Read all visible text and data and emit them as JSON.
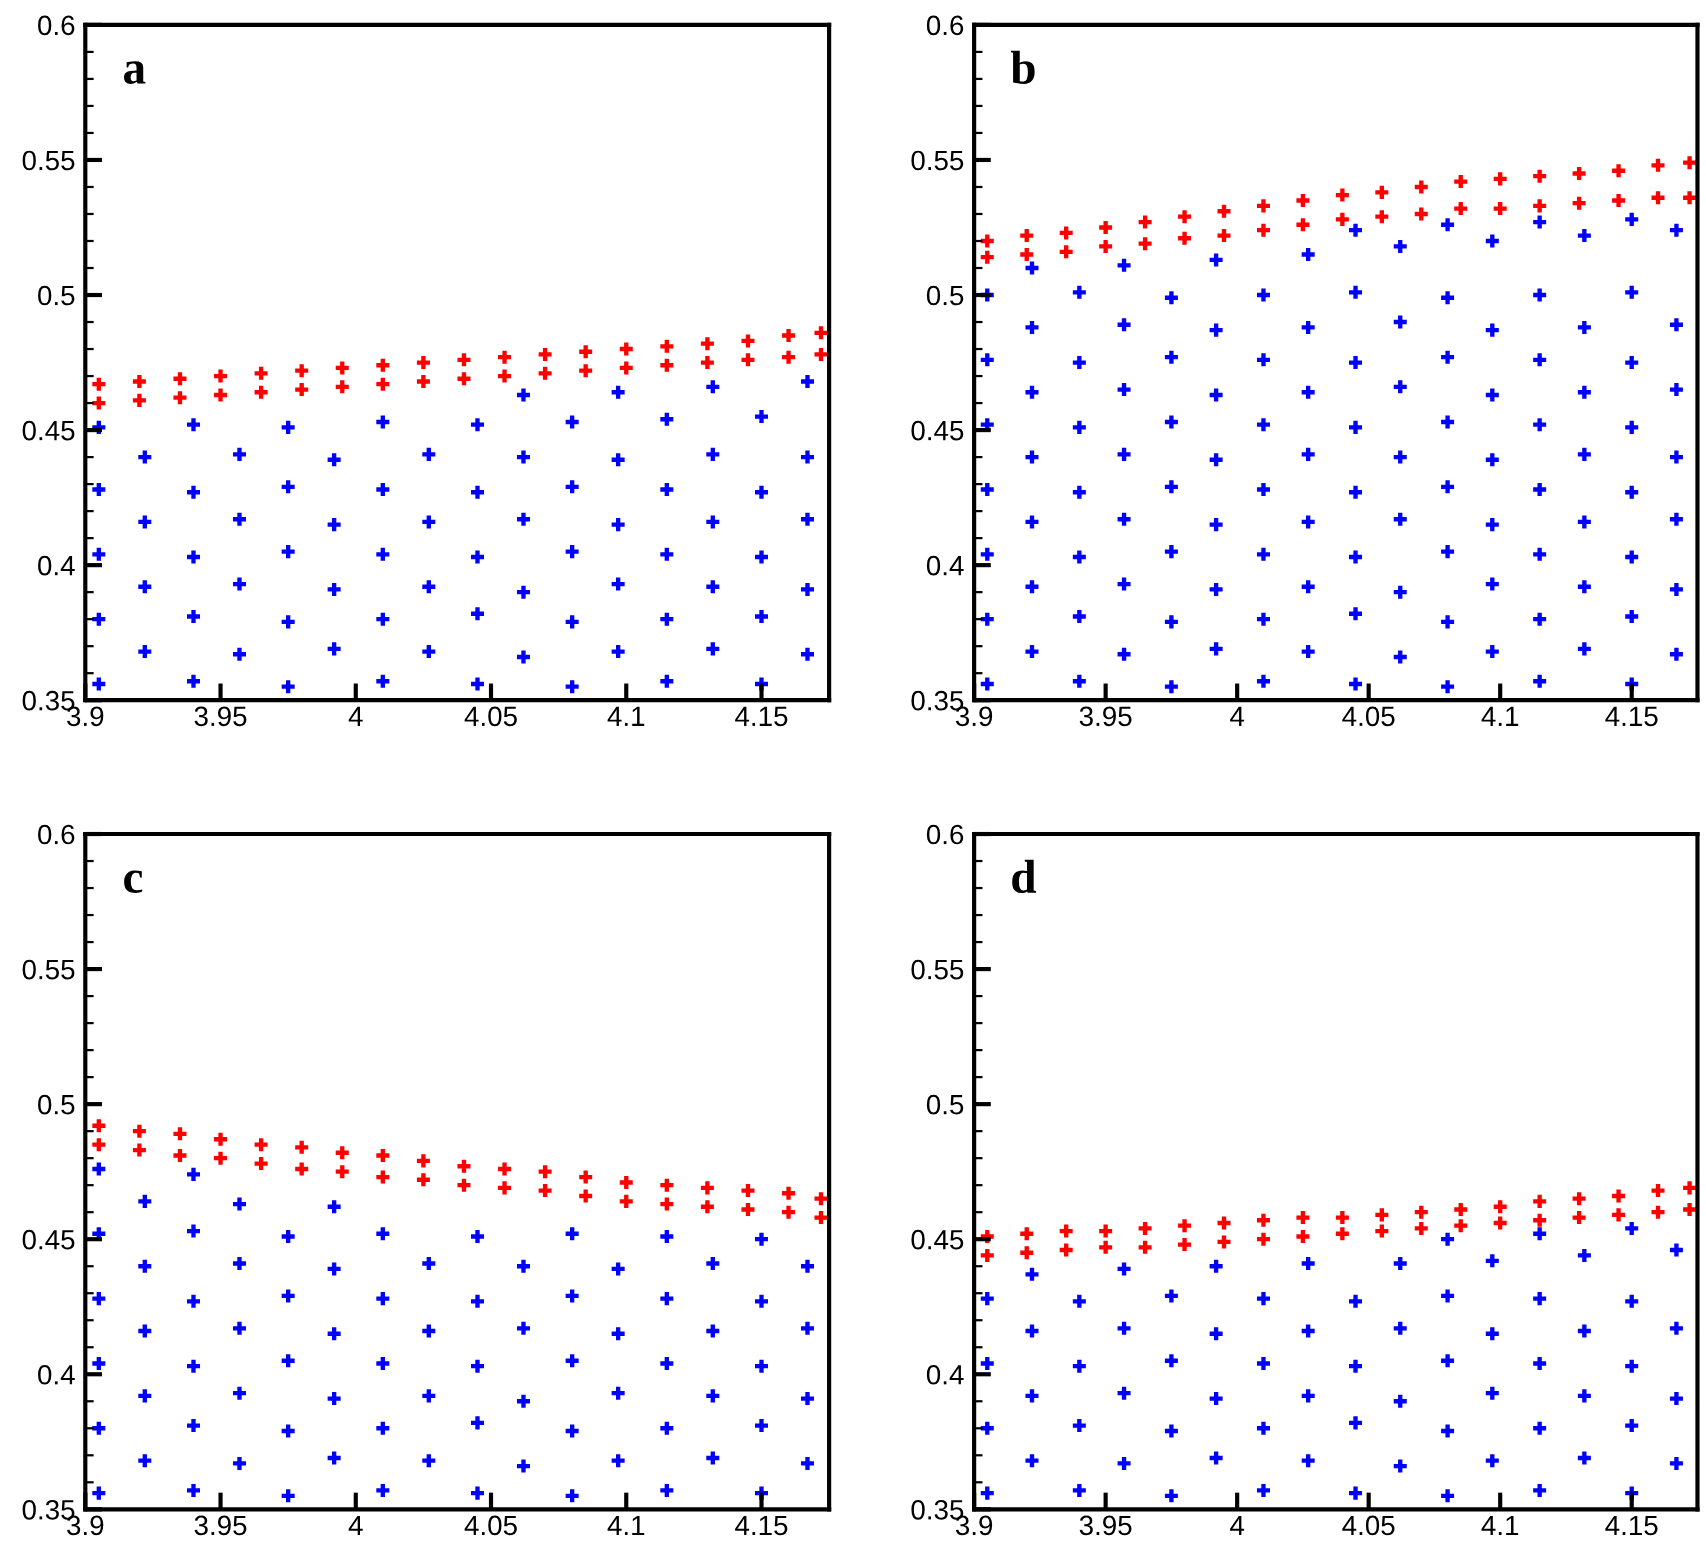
{
  "chart_data": [
    {
      "type": "scatter",
      "title": "a",
      "xlim": [
        3.9,
        4.175
      ],
      "ylim": [
        0.35,
        0.6
      ],
      "xticks": [
        3.9,
        3.95,
        4,
        4.05,
        4.1,
        4.15
      ],
      "yticks": [
        0.35,
        0.4,
        0.45,
        0.5,
        0.55,
        0.6
      ],
      "marker": "cross",
      "series": [
        {
          "color": "#0000ff",
          "x": [
            3.905,
            3.94,
            3.975,
            4.01,
            4.045,
            4.08,
            4.115,
            4.15,
            3.922,
            3.957,
            3.992,
            4.027,
            4.062,
            4.097,
            4.132,
            4.167,
            3.905,
            3.94,
            3.975,
            4.01,
            4.045,
            4.08,
            4.115,
            4.15,
            3.922,
            3.957,
            3.992,
            4.027,
            4.062,
            4.097,
            4.132,
            4.167,
            3.905,
            3.94,
            3.975,
            4.01,
            4.045,
            4.08,
            4.115,
            4.15,
            3.922,
            3.957,
            3.992,
            4.027,
            4.062,
            4.097,
            4.132,
            4.167,
            3.905,
            3.94,
            3.975,
            4.01,
            4.045,
            4.08,
            4.115,
            4.15,
            3.922,
            3.957,
            3.992,
            4.027,
            4.062,
            4.097,
            4.132,
            4.167,
            3.905,
            3.94,
            3.975,
            4.01,
            4.045,
            4.08,
            4.115,
            4.15,
            4.062,
            4.097,
            4.132,
            4.167
          ],
          "values": [
            0.356,
            0.357,
            0.355,
            0.357,
            0.356,
            0.355,
            0.357,
            0.356,
            0.368,
            0.367,
            0.369,
            0.368,
            0.366,
            0.368,
            0.369,
            0.367,
            0.38,
            0.381,
            0.379,
            0.38,
            0.382,
            0.379,
            0.38,
            0.381,
            0.392,
            0.393,
            0.391,
            0.392,
            0.39,
            0.393,
            0.392,
            0.391,
            0.404,
            0.403,
            0.405,
            0.404,
            0.403,
            0.405,
            0.404,
            0.403,
            0.416,
            0.417,
            0.415,
            0.416,
            0.417,
            0.415,
            0.416,
            0.417,
            0.428,
            0.427,
            0.429,
            0.428,
            0.427,
            0.429,
            0.428,
            0.427,
            0.44,
            0.441,
            0.439,
            0.441,
            0.44,
            0.439,
            0.441,
            0.44,
            0.451,
            0.452,
            0.451,
            0.453,
            0.452,
            0.453,
            0.454,
            0.455,
            0.463,
            0.464,
            0.466,
            0.468
          ]
        },
        {
          "color": "#ff0000",
          "x": [
            3.905,
            3.92,
            3.935,
            3.95,
            3.965,
            3.98,
            3.995,
            4.01,
            4.025,
            4.04,
            4.055,
            4.07,
            4.085,
            4.1,
            4.115,
            4.13,
            4.145,
            4.16,
            4.172
          ],
          "values": [
            0.467,
            0.468,
            0.469,
            0.47,
            0.471,
            0.472,
            0.473,
            0.474,
            0.475,
            0.476,
            0.477,
            0.478,
            0.479,
            0.48,
            0.481,
            0.482,
            0.483,
            0.485,
            0.486
          ]
        },
        {
          "color": "#ff0000",
          "x": [
            3.905,
            3.92,
            3.935,
            3.95,
            3.965,
            3.98,
            3.995,
            4.01,
            4.025,
            4.04,
            4.055,
            4.07,
            4.085,
            4.1,
            4.115,
            4.13,
            4.145,
            4.16,
            4.172
          ],
          "values": [
            0.46,
            0.461,
            0.462,
            0.463,
            0.464,
            0.465,
            0.466,
            0.467,
            0.468,
            0.469,
            0.47,
            0.471,
            0.472,
            0.473,
            0.474,
            0.475,
            0.476,
            0.477,
            0.478
          ]
        }
      ]
    },
    {
      "type": "scatter",
      "title": "b",
      "xlim": [
        3.9,
        4.175
      ],
      "ylim": [
        0.35,
        0.6
      ],
      "xticks": [
        3.9,
        3.95,
        4,
        4.05,
        4.1,
        4.15
      ],
      "yticks": [
        0.35,
        0.4,
        0.45,
        0.5,
        0.55,
        0.6
      ],
      "marker": "cross",
      "series": [
        {
          "color": "#0000ff",
          "x": [
            3.905,
            3.94,
            3.975,
            4.01,
            4.045,
            4.08,
            4.115,
            4.15,
            3.922,
            3.957,
            3.992,
            4.027,
            4.062,
            4.097,
            4.132,
            4.167,
            3.905,
            3.94,
            3.975,
            4.01,
            4.045,
            4.08,
            4.115,
            4.15,
            3.922,
            3.957,
            3.992,
            4.027,
            4.062,
            4.097,
            4.132,
            4.167,
            3.905,
            3.94,
            3.975,
            4.01,
            4.045,
            4.08,
            4.115,
            4.15,
            3.922,
            3.957,
            3.992,
            4.027,
            4.062,
            4.097,
            4.132,
            4.167,
            3.905,
            3.94,
            3.975,
            4.01,
            4.045,
            4.08,
            4.115,
            4.15,
            3.922,
            3.957,
            3.992,
            4.027,
            4.062,
            4.097,
            4.132,
            4.167,
            3.905,
            3.94,
            3.975,
            4.01,
            4.045,
            4.08,
            4.115,
            4.15,
            3.922,
            3.957,
            3.992,
            4.027,
            4.062,
            4.097,
            4.132,
            4.167,
            3.905,
            3.94,
            3.975,
            4.01,
            4.045,
            4.08,
            4.115,
            4.15,
            3.922,
            3.957,
            3.992,
            4.027,
            4.062,
            4.097,
            4.132,
            4.167,
            3.905,
            3.94,
            3.975,
            4.01,
            4.045,
            4.08,
            4.115,
            4.15,
            3.922,
            3.957,
            3.992,
            4.027,
            4.062,
            4.097,
            4.132,
            4.167,
            4.045,
            4.08,
            4.115,
            4.15
          ],
          "values": [
            0.356,
            0.357,
            0.355,
            0.357,
            0.356,
            0.355,
            0.357,
            0.356,
            0.368,
            0.367,
            0.369,
            0.368,
            0.366,
            0.368,
            0.369,
            0.367,
            0.38,
            0.381,
            0.379,
            0.38,
            0.382,
            0.379,
            0.38,
            0.381,
            0.392,
            0.393,
            0.391,
            0.392,
            0.39,
            0.393,
            0.392,
            0.391,
            0.404,
            0.403,
            0.405,
            0.404,
            0.403,
            0.405,
            0.404,
            0.403,
            0.416,
            0.417,
            0.415,
            0.416,
            0.417,
            0.415,
            0.416,
            0.417,
            0.428,
            0.427,
            0.429,
            0.428,
            0.427,
            0.429,
            0.428,
            0.427,
            0.44,
            0.441,
            0.439,
            0.441,
            0.44,
            0.439,
            0.441,
            0.44,
            0.452,
            0.451,
            0.453,
            0.452,
            0.451,
            0.453,
            0.452,
            0.451,
            0.464,
            0.465,
            0.463,
            0.464,
            0.466,
            0.463,
            0.464,
            0.465,
            0.476,
            0.475,
            0.477,
            0.476,
            0.475,
            0.477,
            0.476,
            0.475,
            0.488,
            0.489,
            0.487,
            0.488,
            0.49,
            0.487,
            0.488,
            0.489,
            0.5,
            0.501,
            0.499,
            0.5,
            0.501,
            0.499,
            0.5,
            0.501,
            0.51,
            0.511,
            0.513,
            0.515,
            0.518,
            0.52,
            0.522,
            0.524,
            0.524,
            0.526,
            0.527,
            0.528
          ]
        },
        {
          "color": "#ff0000",
          "x": [
            3.905,
            3.92,
            3.935,
            3.95,
            3.965,
            3.98,
            3.995,
            4.01,
            4.025,
            4.04,
            4.055,
            4.07,
            4.085,
            4.1,
            4.115,
            4.13,
            4.145,
            4.16,
            4.172
          ],
          "values": [
            0.52,
            0.522,
            0.523,
            0.525,
            0.527,
            0.529,
            0.531,
            0.533,
            0.535,
            0.537,
            0.538,
            0.54,
            0.542,
            0.543,
            0.544,
            0.545,
            0.546,
            0.548,
            0.549
          ]
        },
        {
          "color": "#ff0000",
          "x": [
            3.905,
            3.92,
            3.935,
            3.95,
            3.965,
            3.98,
            3.995,
            4.01,
            4.025,
            4.04,
            4.055,
            4.07,
            4.085,
            4.1,
            4.115,
            4.13,
            4.145,
            4.16,
            4.172
          ],
          "values": [
            0.514,
            0.515,
            0.516,
            0.518,
            0.519,
            0.521,
            0.522,
            0.524,
            0.526,
            0.528,
            0.529,
            0.53,
            0.532,
            0.532,
            0.533,
            0.534,
            0.535,
            0.536,
            0.536
          ]
        }
      ]
    },
    {
      "type": "scatter",
      "title": "c",
      "xlim": [
        3.9,
        4.175
      ],
      "ylim": [
        0.35,
        0.6
      ],
      "xticks": [
        3.9,
        3.95,
        4,
        4.05,
        4.1,
        4.15
      ],
      "yticks": [
        0.35,
        0.4,
        0.45,
        0.5,
        0.55,
        0.6
      ],
      "marker": "cross",
      "series": [
        {
          "color": "#0000ff",
          "x": [
            3.905,
            3.94,
            3.975,
            4.01,
            4.045,
            4.08,
            4.115,
            4.15,
            3.922,
            3.957,
            3.992,
            4.027,
            4.062,
            4.097,
            4.132,
            4.167,
            3.905,
            3.94,
            3.975,
            4.01,
            4.045,
            4.08,
            4.115,
            4.15,
            3.922,
            3.957,
            3.992,
            4.027,
            4.062,
            4.097,
            4.132,
            4.167,
            3.905,
            3.94,
            3.975,
            4.01,
            4.045,
            4.08,
            4.115,
            4.15,
            3.922,
            3.957,
            3.992,
            4.027,
            4.062,
            4.097,
            4.132,
            4.167,
            3.905,
            3.94,
            3.975,
            4.01,
            4.045,
            4.08,
            4.115,
            4.15,
            3.922,
            3.957,
            3.992,
            4.027,
            4.062,
            4.097,
            4.132,
            4.167,
            3.905,
            3.94,
            3.975,
            4.01,
            4.045,
            4.08,
            4.115,
            4.15,
            3.922,
            3.957,
            3.992,
            3.905,
            3.94
          ],
          "values": [
            0.356,
            0.357,
            0.355,
            0.357,
            0.356,
            0.355,
            0.357,
            0.356,
            0.368,
            0.367,
            0.369,
            0.368,
            0.366,
            0.368,
            0.369,
            0.367,
            0.38,
            0.381,
            0.379,
            0.38,
            0.382,
            0.379,
            0.38,
            0.381,
            0.392,
            0.393,
            0.391,
            0.392,
            0.39,
            0.393,
            0.392,
            0.391,
            0.404,
            0.403,
            0.405,
            0.404,
            0.403,
            0.405,
            0.404,
            0.403,
            0.416,
            0.417,
            0.415,
            0.416,
            0.417,
            0.415,
            0.416,
            0.417,
            0.428,
            0.427,
            0.429,
            0.428,
            0.427,
            0.429,
            0.428,
            0.427,
            0.44,
            0.441,
            0.439,
            0.441,
            0.44,
            0.439,
            0.441,
            0.44,
            0.452,
            0.453,
            0.451,
            0.452,
            0.451,
            0.452,
            0.451,
            0.45,
            0.464,
            0.463,
            0.462,
            0.476,
            0.474
          ]
        },
        {
          "color": "#ff0000",
          "x": [
            3.905,
            3.92,
            3.935,
            3.95,
            3.965,
            3.98,
            3.995,
            4.01,
            4.025,
            4.04,
            4.055,
            4.07,
            4.085,
            4.1,
            4.115,
            4.13,
            4.145,
            4.16,
            4.172
          ],
          "values": [
            0.492,
            0.49,
            0.489,
            0.487,
            0.485,
            0.484,
            0.482,
            0.481,
            0.479,
            0.477,
            0.476,
            0.475,
            0.473,
            0.471,
            0.47,
            0.469,
            0.468,
            0.467,
            0.465
          ]
        },
        {
          "color": "#ff0000",
          "x": [
            3.905,
            3.92,
            3.935,
            3.95,
            3.965,
            3.98,
            3.995,
            4.01,
            4.025,
            4.04,
            4.055,
            4.07,
            4.085,
            4.1,
            4.115,
            4.13,
            4.145,
            4.16,
            4.172
          ],
          "values": [
            0.485,
            0.483,
            0.481,
            0.48,
            0.478,
            0.476,
            0.475,
            0.473,
            0.472,
            0.47,
            0.469,
            0.468,
            0.466,
            0.464,
            0.463,
            0.462,
            0.461,
            0.46,
            0.458
          ]
        }
      ]
    },
    {
      "type": "scatter",
      "title": "d",
      "xlim": [
        3.9,
        4.175
      ],
      "ylim": [
        0.35,
        0.6
      ],
      "xticks": [
        3.9,
        3.95,
        4,
        4.05,
        4.1,
        4.15
      ],
      "yticks": [
        0.35,
        0.4,
        0.45,
        0.5,
        0.55,
        0.6
      ],
      "marker": "cross",
      "series": [
        {
          "color": "#0000ff",
          "x": [
            3.905,
            3.94,
            3.975,
            4.01,
            4.045,
            4.08,
            4.115,
            4.15,
            3.922,
            3.957,
            3.992,
            4.027,
            4.062,
            4.097,
            4.132,
            4.167,
            3.905,
            3.94,
            3.975,
            4.01,
            4.045,
            4.08,
            4.115,
            4.15,
            3.922,
            3.957,
            3.992,
            4.027,
            4.062,
            4.097,
            4.132,
            4.167,
            3.905,
            3.94,
            3.975,
            4.01,
            4.045,
            4.08,
            4.115,
            4.15,
            3.922,
            3.957,
            3.992,
            4.027,
            4.062,
            4.097,
            4.132,
            4.167,
            3.905,
            3.94,
            3.975,
            4.01,
            4.045,
            4.08,
            4.115,
            4.15,
            3.922,
            3.957,
            3.992,
            4.027,
            4.062,
            4.097,
            4.132,
            4.167,
            4.08,
            4.115,
            4.15
          ],
          "values": [
            0.356,
            0.357,
            0.355,
            0.357,
            0.356,
            0.355,
            0.357,
            0.356,
            0.368,
            0.367,
            0.369,
            0.368,
            0.366,
            0.368,
            0.369,
            0.367,
            0.38,
            0.381,
            0.379,
            0.38,
            0.382,
            0.379,
            0.38,
            0.381,
            0.392,
            0.393,
            0.391,
            0.392,
            0.39,
            0.393,
            0.392,
            0.391,
            0.404,
            0.403,
            0.405,
            0.404,
            0.403,
            0.405,
            0.404,
            0.403,
            0.416,
            0.417,
            0.415,
            0.416,
            0.417,
            0.415,
            0.416,
            0.417,
            0.428,
            0.427,
            0.429,
            0.428,
            0.427,
            0.429,
            0.428,
            0.427,
            0.437,
            0.439,
            0.44,
            0.441,
            0.441,
            0.442,
            0.444,
            0.446,
            0.45,
            0.452,
            0.454
          ]
        },
        {
          "color": "#ff0000",
          "x": [
            3.905,
            3.92,
            3.935,
            3.95,
            3.965,
            3.98,
            3.995,
            4.01,
            4.025,
            4.04,
            4.055,
            4.07,
            4.085,
            4.1,
            4.115,
            4.13,
            4.145,
            4.16,
            4.172
          ],
          "values": [
            0.451,
            0.452,
            0.453,
            0.453,
            0.454,
            0.455,
            0.456,
            0.457,
            0.458,
            0.458,
            0.459,
            0.46,
            0.461,
            0.462,
            0.464,
            0.465,
            0.466,
            0.468,
            0.469
          ]
        },
        {
          "color": "#ff0000",
          "x": [
            3.905,
            3.92,
            3.935,
            3.95,
            3.965,
            3.98,
            3.995,
            4.01,
            4.025,
            4.04,
            4.055,
            4.07,
            4.085,
            4.1,
            4.115,
            4.13,
            4.145,
            4.16,
            4.172
          ],
          "values": [
            0.444,
            0.445,
            0.446,
            0.447,
            0.447,
            0.448,
            0.449,
            0.45,
            0.451,
            0.452,
            0.453,
            0.454,
            0.455,
            0.456,
            0.457,
            0.458,
            0.459,
            0.46,
            0.461
          ]
        }
      ]
    }
  ]
}
